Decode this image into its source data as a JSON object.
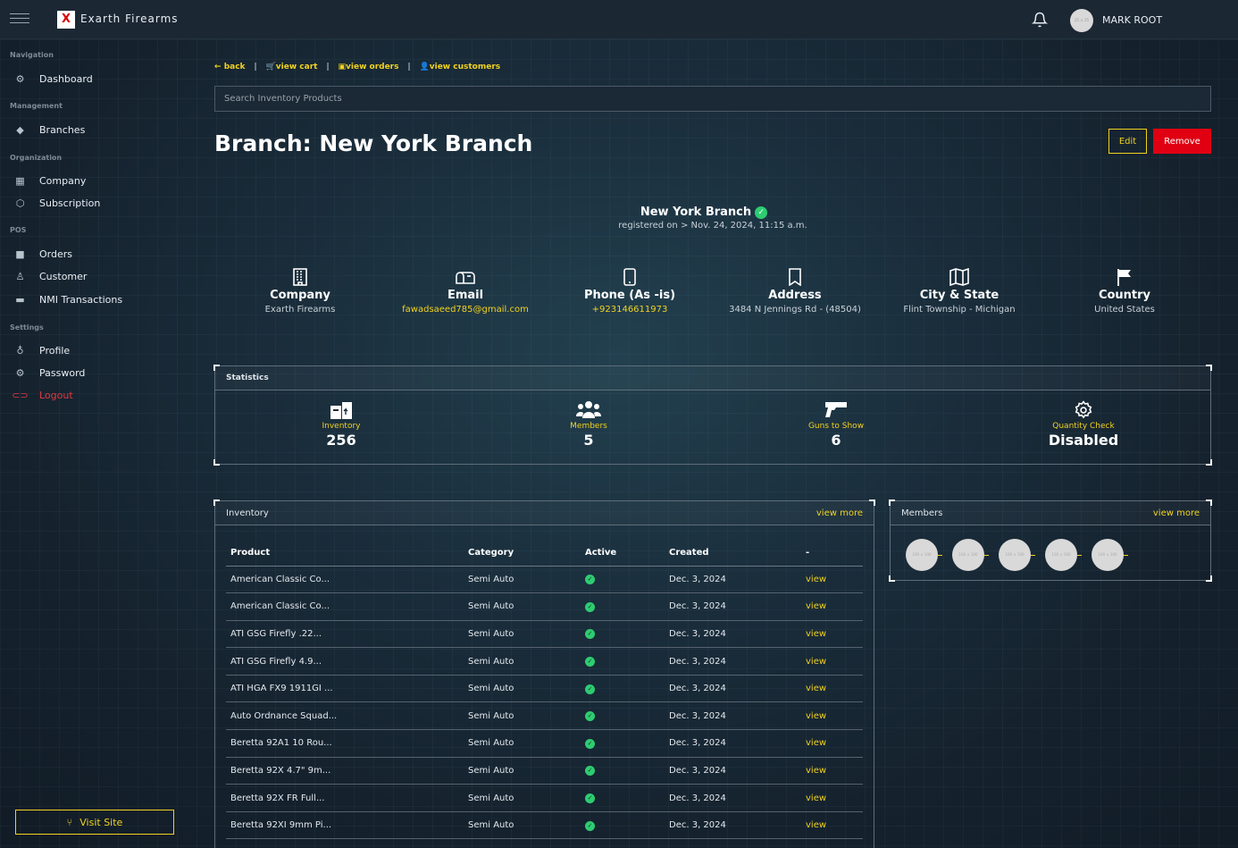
{
  "header": {
    "brand": "Exarth Firearms",
    "user_name": "MARK ROOT",
    "avatar_text": "25 × 25"
  },
  "sidebar": {
    "sections": [
      "Navigation",
      "Management",
      "Organization",
      "POS",
      "Settings"
    ],
    "items": [
      "Dashboard",
      "Branches",
      "Company",
      "Subscription",
      "Orders",
      "Customer",
      "NMI Transactions",
      "Profile",
      "Password",
      "Logout"
    ],
    "visit_site": "Visit Site"
  },
  "breadcrumbs": {
    "back": "back",
    "cart": "view cart",
    "orders": "view orders",
    "customers": "view customers"
  },
  "search": {
    "placeholder": "Search Inventory Products"
  },
  "page": {
    "title": "Branch: New York Branch",
    "edit": "Edit",
    "remove": "Remove",
    "branch_name": "New York Branch",
    "registered": "registered on > Nov. 24, 2024, 11:15 a.m."
  },
  "info": [
    {
      "label": "Company",
      "value": "Exarth Firearms",
      "icon": "building-icon"
    },
    {
      "label": "Email",
      "value": "fawadsaeed785@gmail.com",
      "icon": "mailbox-icon"
    },
    {
      "label": "Phone (As -is)",
      "value": "+923146611973",
      "icon": "phone-icon"
    },
    {
      "label": "Address",
      "value": "3484 N Jennings Rd - (48504)",
      "icon": "bookmark-icon"
    },
    {
      "label": "City & State",
      "value": "Flint Township - Michigan",
      "icon": "map-icon"
    },
    {
      "label": "Country",
      "value": "United States",
      "icon": "flag-icon"
    }
  ],
  "statistics": {
    "title": "Statistics",
    "items": [
      {
        "label": "Inventory",
        "value": "256",
        "icon": "inventory-icon"
      },
      {
        "label": "Members",
        "value": "5",
        "icon": "members-icon"
      },
      {
        "label": "Guns to Show",
        "value": "6",
        "icon": "gun-icon"
      },
      {
        "label": "Quantity Check",
        "value": "Disabled",
        "icon": "gear-icon"
      }
    ]
  },
  "inventory": {
    "title": "Inventory",
    "view_more": "view more",
    "columns": [
      "Product",
      "Category",
      "Active",
      "Created",
      "-"
    ],
    "rows": [
      {
        "product": "American Classic Co...",
        "category": "Semi Auto",
        "created": "Dec. 3, 2024",
        "action": "view"
      },
      {
        "product": "American Classic Co...",
        "category": "Semi Auto",
        "created": "Dec. 3, 2024",
        "action": "view"
      },
      {
        "product": "ATI GSG Firefly .22...",
        "category": "Semi Auto",
        "created": "Dec. 3, 2024",
        "action": "view"
      },
      {
        "product": "ATI GSG Firefly 4.9...",
        "category": "Semi Auto",
        "created": "Dec. 3, 2024",
        "action": "view"
      },
      {
        "product": "ATI HGA FX9 1911GI ...",
        "category": "Semi Auto",
        "created": "Dec. 3, 2024",
        "action": "view"
      },
      {
        "product": "Auto Ordnance Squad...",
        "category": "Semi Auto",
        "created": "Dec. 3, 2024",
        "action": "view"
      },
      {
        "product": "Beretta 92A1 10 Rou...",
        "category": "Semi Auto",
        "created": "Dec. 3, 2024",
        "action": "view"
      },
      {
        "product": "Beretta 92X 4.7\" 9m...",
        "category": "Semi Auto",
        "created": "Dec. 3, 2024",
        "action": "view"
      },
      {
        "product": "Beretta 92X FR Full...",
        "category": "Semi Auto",
        "created": "Dec. 3, 2024",
        "action": "view"
      },
      {
        "product": "Beretta 92XI 9mm Pi...",
        "category": "Semi Auto",
        "created": "Dec. 3, 2024",
        "action": "view"
      }
    ]
  },
  "members": {
    "title": "Members",
    "view_more": "view more",
    "avatar_text": "100 × 100",
    "count": 5
  },
  "colors": {
    "accent": "#f1d21f",
    "danger": "#e00012",
    "success": "#2ecc71",
    "bg": "#1a2d3b"
  }
}
